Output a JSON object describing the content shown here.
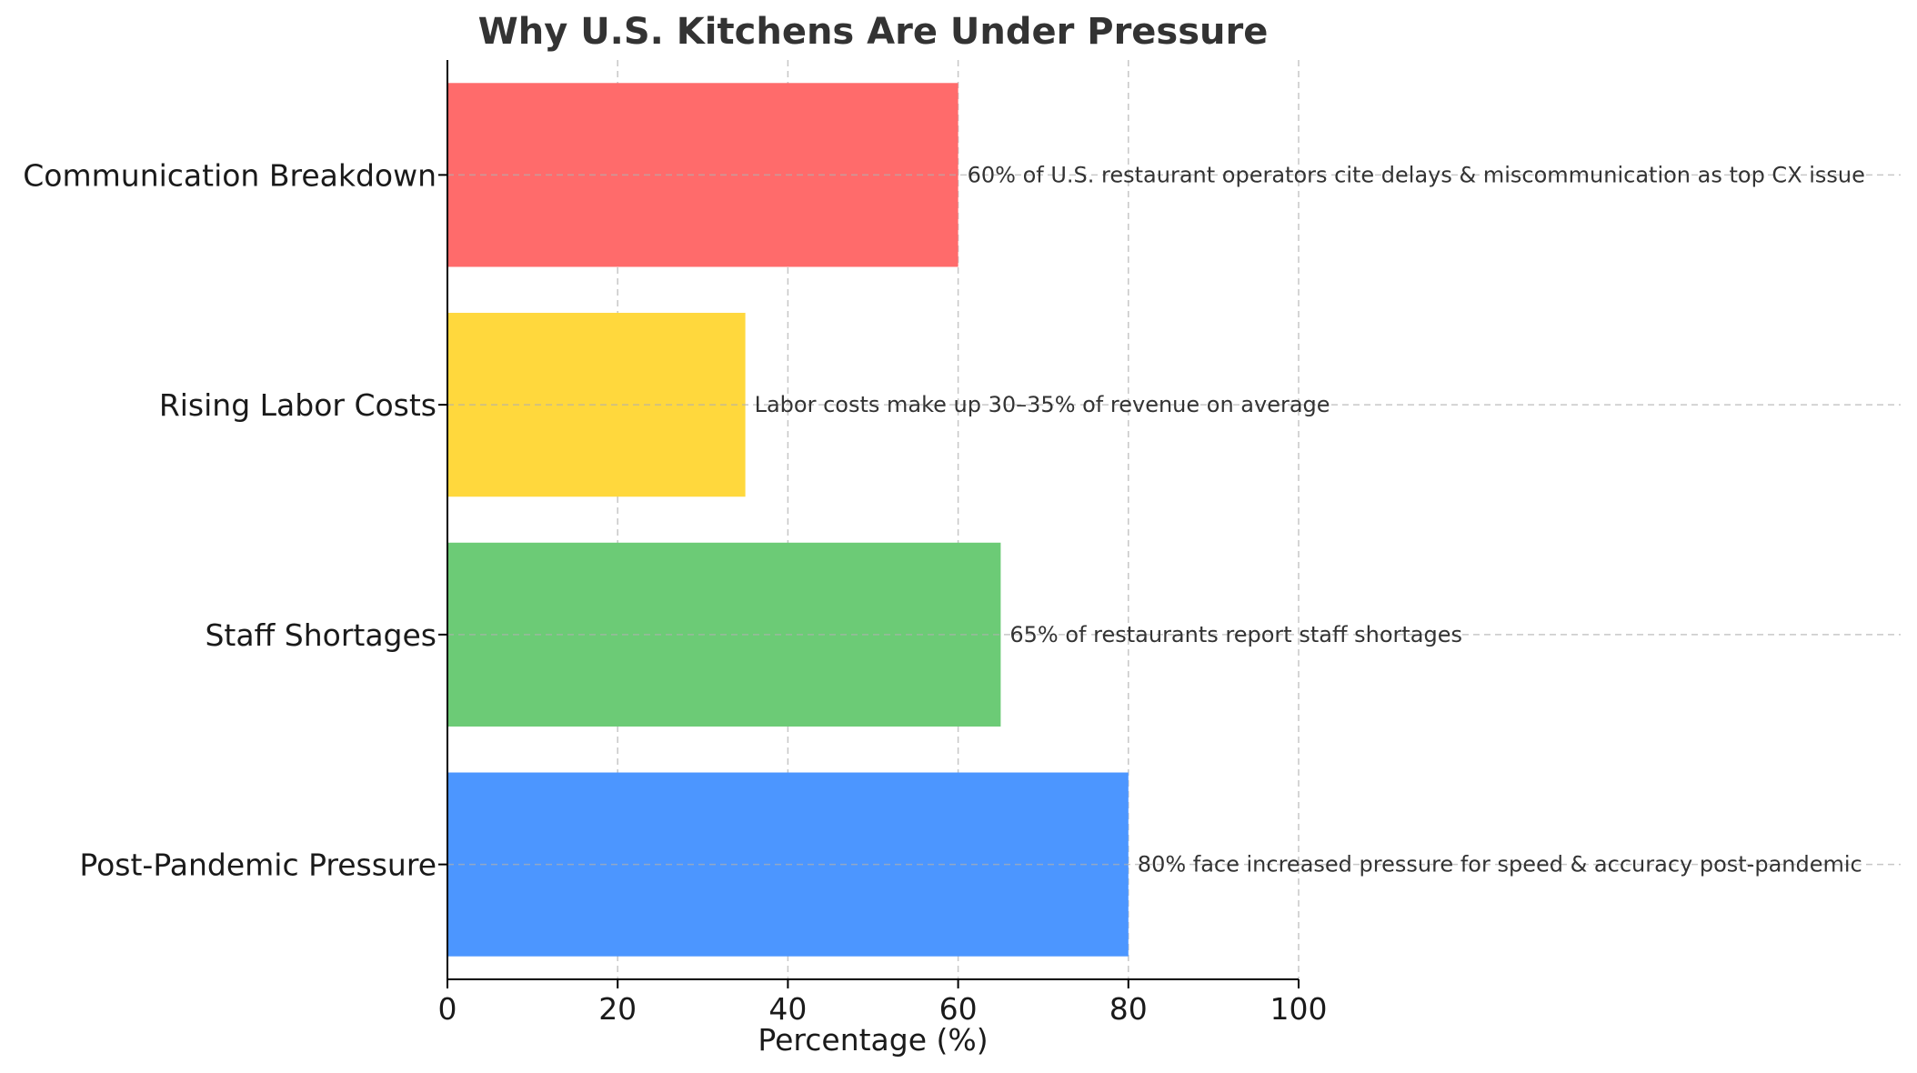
{
  "chart_data": {
    "type": "bar",
    "orientation": "horizontal",
    "title": "Why U.S. Kitchens Are Under Pressure",
    "xlabel": "Percentage (%)",
    "ylabel": "",
    "xlim": [
      0,
      100
    ],
    "xticks": [
      0,
      20,
      40,
      60,
      80,
      100
    ],
    "grid": true,
    "categories": [
      "Post-Pandemic Pressure",
      "Staff Shortages",
      "Rising Labor Costs",
      "Communication Breakdown"
    ],
    "values": [
      80,
      65,
      35,
      60
    ],
    "colors": [
      "#4c96ff",
      "#6ccb76",
      "#ffd83d",
      "#ff6b6b"
    ],
    "annotations": [
      "80% face increased pressure for speed & accuracy post-pandemic",
      "65% of restaurants report staff shortages",
      "Labor costs make up 30–35% of revenue on average",
      "60% of U.S. restaurant operators cite delays & miscommunication as top CX issue"
    ]
  }
}
